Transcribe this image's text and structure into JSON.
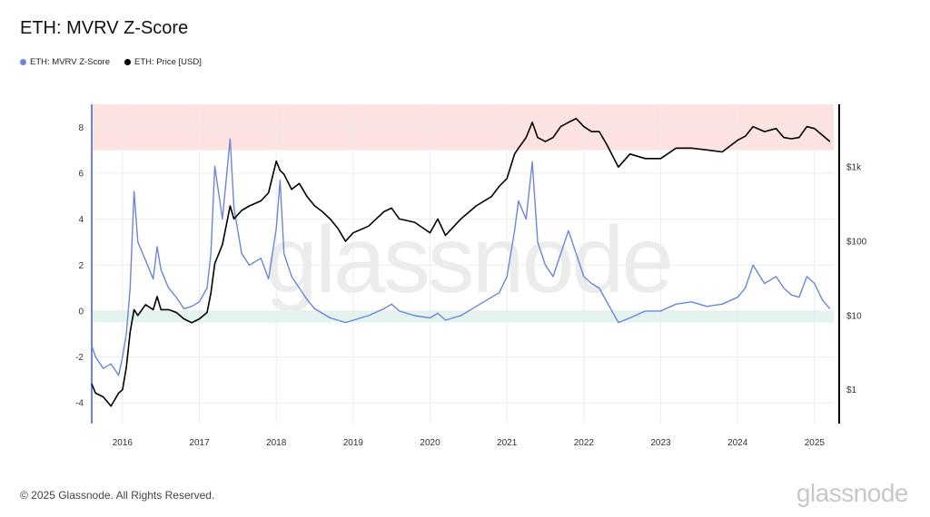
{
  "title": "ETH: MVRV Z-Score",
  "legend": [
    {
      "label": "ETH: MVRV Z-Score",
      "color": "#6b86d9"
    },
    {
      "label": "ETH: Price [USD]",
      "color": "#000000"
    }
  ],
  "footer": "© 2025 Glassnode. All Rights Reserved.",
  "brand": "glassnode",
  "watermark": "glassnode",
  "colors": {
    "zscore": "#6b86d9",
    "price": "#000000",
    "overvalued_band": "#fde2e2",
    "undervalued_band": "#e3f4ef",
    "grid": "#ececec"
  },
  "chart_data": {
    "type": "line",
    "title": "ETH: MVRV Z-Score",
    "x_ticks": [
      "2016",
      "2017",
      "2018",
      "2019",
      "2020",
      "2021",
      "2022",
      "2023",
      "2024",
      "2025"
    ],
    "xlim": [
      2015.6,
      2025.25
    ],
    "y_left": {
      "ticks": [
        8,
        6,
        4,
        2,
        0,
        -2,
        -4
      ],
      "range": [
        -4.9,
        9
      ]
    },
    "y_right": {
      "ticks": [
        "$1k",
        "$100",
        "$10",
        "$1"
      ],
      "tick_values": [
        1000,
        100,
        10,
        1
      ],
      "scale": "log",
      "range": [
        0.35,
        7000
      ]
    },
    "bands": [
      {
        "axis": "left",
        "from": 7,
        "to": 9,
        "color": "#fde2e2"
      },
      {
        "axis": "left",
        "from": -0.5,
        "to": 0,
        "color": "#e3f4ef"
      }
    ],
    "grid": true,
    "series": [
      {
        "name": "ETH: MVRV Z-Score",
        "axis": "left",
        "color": "#6b86d9",
        "x": [
          2015.6,
          2015.65,
          2015.75,
          2015.85,
          2015.95,
          2016.0,
          2016.05,
          2016.1,
          2016.15,
          2016.2,
          2016.3,
          2016.4,
          2016.45,
          2016.5,
          2016.6,
          2016.7,
          2016.8,
          2016.9,
          2017.0,
          2017.1,
          2017.15,
          2017.2,
          2017.3,
          2017.4,
          2017.45,
          2017.55,
          2017.65,
          2017.8,
          2017.9,
          2018.0,
          2018.05,
          2018.1,
          2018.2,
          2018.3,
          2018.4,
          2018.5,
          2018.6,
          2018.7,
          2018.8,
          2018.9,
          2019.0,
          2019.2,
          2019.4,
          2019.5,
          2019.6,
          2019.8,
          2020.0,
          2020.1,
          2020.2,
          2020.4,
          2020.6,
          2020.8,
          2020.9,
          2021.0,
          2021.1,
          2021.15,
          2021.25,
          2021.33,
          2021.4,
          2021.5,
          2021.6,
          2021.7,
          2021.8,
          2021.9,
          2022.0,
          2022.1,
          2022.2,
          2022.3,
          2022.45,
          2022.6,
          2022.8,
          2023.0,
          2023.2,
          2023.4,
          2023.6,
          2023.8,
          2024.0,
          2024.1,
          2024.2,
          2024.35,
          2024.5,
          2024.6,
          2024.7,
          2024.8,
          2024.9,
          2025.0,
          2025.1,
          2025.2
        ],
        "values": [
          -1.5,
          -2.0,
          -2.5,
          -2.3,
          -2.8,
          -2.0,
          -1.0,
          1.0,
          5.2,
          3.0,
          2.2,
          1.4,
          2.8,
          1.8,
          1.0,
          0.6,
          0.1,
          0.2,
          0.4,
          1.0,
          2.5,
          6.3,
          4.0,
          7.5,
          4.5,
          2.5,
          2.0,
          2.3,
          1.4,
          3.6,
          5.7,
          2.5,
          1.5,
          1.0,
          0.5,
          0.1,
          -0.1,
          -0.3,
          -0.4,
          -0.5,
          -0.4,
          -0.2,
          0.1,
          0.3,
          0.0,
          -0.2,
          -0.3,
          -0.1,
          -0.4,
          -0.2,
          0.2,
          0.6,
          0.8,
          1.5,
          3.5,
          4.8,
          4.0,
          6.5,
          3.0,
          2.0,
          1.5,
          2.5,
          3.5,
          2.5,
          1.5,
          1.2,
          1.0,
          0.4,
          -0.5,
          -0.3,
          0.0,
          0.0,
          0.3,
          0.4,
          0.2,
          0.3,
          0.6,
          1.0,
          2.0,
          1.2,
          1.5,
          1.0,
          0.7,
          0.6,
          1.5,
          1.2,
          0.5,
          0.1
        ]
      },
      {
        "name": "ETH: Price [USD]",
        "axis": "right",
        "color": "#000000",
        "x": [
          2015.6,
          2015.65,
          2015.75,
          2015.85,
          2015.95,
          2016.0,
          2016.05,
          2016.1,
          2016.15,
          2016.2,
          2016.3,
          2016.4,
          2016.45,
          2016.5,
          2016.6,
          2016.7,
          2016.8,
          2016.9,
          2017.0,
          2017.1,
          2017.15,
          2017.2,
          2017.3,
          2017.4,
          2017.45,
          2017.55,
          2017.65,
          2017.8,
          2017.9,
          2018.0,
          2018.05,
          2018.1,
          2018.2,
          2018.3,
          2018.4,
          2018.5,
          2018.6,
          2018.7,
          2018.8,
          2018.9,
          2019.0,
          2019.2,
          2019.4,
          2019.5,
          2019.6,
          2019.8,
          2020.0,
          2020.1,
          2020.2,
          2020.4,
          2020.6,
          2020.8,
          2020.9,
          2021.0,
          2021.1,
          2021.15,
          2021.25,
          2021.33,
          2021.4,
          2021.5,
          2021.6,
          2021.7,
          2021.8,
          2021.9,
          2022.0,
          2022.1,
          2022.2,
          2022.3,
          2022.45,
          2022.6,
          2022.8,
          2023.0,
          2023.2,
          2023.4,
          2023.6,
          2023.8,
          2024.0,
          2024.1,
          2024.2,
          2024.35,
          2024.5,
          2024.6,
          2024.7,
          2024.8,
          2024.9,
          2025.0,
          2025.1,
          2025.2
        ],
        "values": [
          1.2,
          0.9,
          0.8,
          0.6,
          0.9,
          1.0,
          2.0,
          6.0,
          12.0,
          10.0,
          14.0,
          12.0,
          18.0,
          12.0,
          12.0,
          11.0,
          9.0,
          8.0,
          9.0,
          11.0,
          20.0,
          50.0,
          90.0,
          300.0,
          200.0,
          260.0,
          300.0,
          350.0,
          450.0,
          1200.0,
          900.0,
          800.0,
          500.0,
          600.0,
          400.0,
          300.0,
          250.0,
          200.0,
          150.0,
          100.0,
          130.0,
          160.0,
          250.0,
          280.0,
          200.0,
          180.0,
          130.0,
          200.0,
          120.0,
          200.0,
          300.0,
          400.0,
          550.0,
          700.0,
          1500.0,
          1800.0,
          2500.0,
          4000.0,
          2500.0,
          2200.0,
          2500.0,
          3500.0,
          4000.0,
          4500.0,
          3500.0,
          3000.0,
          3000.0,
          2000.0,
          1000.0,
          1500.0,
          1300.0,
          1300.0,
          1800.0,
          1800.0,
          1700.0,
          1600.0,
          2300.0,
          2600.0,
          3500.0,
          3000.0,
          3300.0,
          2500.0,
          2400.0,
          2500.0,
          3500.0,
          3300.0,
          2700.0,
          2200.0
        ]
      }
    ]
  }
}
